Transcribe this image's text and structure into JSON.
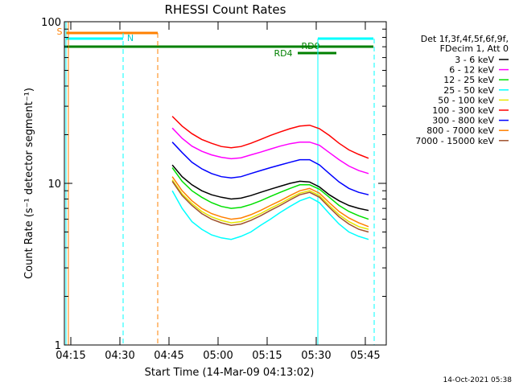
{
  "chart_data": {
    "type": "line",
    "title": "RHESSI Count Rates",
    "x_label": "Start Time (14-Mar-09 04:13:02)",
    "y_label": "Count Rate (s⁻¹ detector segment⁻¹)",
    "timestamp": "14-Oct-2021 05:38",
    "legend_title": [
      "Det 1f,3f,4f,5f,6f,9f,",
      "FDecim 1, Att 0"
    ],
    "annotations": [
      "S",
      "N",
      "RD0",
      "RD4"
    ],
    "log_y": true,
    "xlim": [
      "04:13:02",
      "05:51:24"
    ],
    "xticks": [
      "04:15",
      "04:30",
      "04:45",
      "05:00",
      "05:15",
      "05:30",
      "05:45"
    ],
    "ylim": [
      1,
      100
    ],
    "yticks": [
      1,
      10,
      100
    ],
    "x": [
      "04:46",
      "04:49",
      "04:52",
      "04:55",
      "04:58",
      "05:01",
      "05:04",
      "05:07",
      "05:10",
      "05:13",
      "05:16",
      "05:19",
      "05:22",
      "05:25",
      "05:28",
      "05:31",
      "05:34",
      "05:37",
      "05:40",
      "05:43",
      "05:46"
    ],
    "series": [
      {
        "name": "50 - 100 keV",
        "color": "#e6e600",
        "values": [
          10.5,
          8.6,
          7.5,
          6.7,
          6.2,
          5.9,
          5.7,
          5.8,
          6.1,
          6.5,
          7,
          7.5,
          8.1,
          8.7,
          9,
          8.4,
          7.3,
          6.4,
          5.8,
          5.4,
          5.2
        ]
      },
      {
        "name": "7000 - 15000 keV",
        "color": "#a0522d",
        "values": [
          10.3,
          8.4,
          7.3,
          6.5,
          6,
          5.7,
          5.5,
          5.6,
          5.9,
          6.3,
          6.8,
          7.3,
          7.9,
          8.5,
          8.8,
          8.2,
          7.1,
          6.2,
          5.6,
          5.2,
          5
        ]
      },
      {
        "name": "3 - 6 keV",
        "color": "#000000",
        "values": [
          13,
          11,
          9.8,
          9,
          8.5,
          8.2,
          8,
          8.1,
          8.4,
          8.8,
          9.2,
          9.6,
          10,
          10.3,
          10.2,
          9.5,
          8.5,
          7.8,
          7.3,
          7,
          6.8
        ]
      },
      {
        "name": "6 - 12 keV",
        "color": "#ff00ff",
        "values": [
          22,
          19,
          17,
          15.8,
          15,
          14.5,
          14.2,
          14.4,
          15,
          15.6,
          16.3,
          17,
          17.6,
          18,
          18,
          17.2,
          15.5,
          14,
          12.8,
          12,
          11.5
        ]
      },
      {
        "name": "12 - 25 keV",
        "color": "#00e000",
        "values": [
          12.5,
          10.3,
          9,
          8.2,
          7.6,
          7.2,
          7,
          7.1,
          7.4,
          7.8,
          8.3,
          8.8,
          9.3,
          9.8,
          9.8,
          9.2,
          8.2,
          7.3,
          6.7,
          6.3,
          6
        ]
      },
      {
        "name": "25 - 50 keV",
        "color": "#00ffff",
        "values": [
          9,
          7,
          5.8,
          5.2,
          4.8,
          4.6,
          4.5,
          4.7,
          5,
          5.5,
          6,
          6.6,
          7.2,
          7.8,
          8.2,
          7.6,
          6.5,
          5.6,
          5,
          4.7,
          4.5
        ]
      },
      {
        "name": "100 - 300 keV",
        "color": "#ff0000",
        "values": [
          26,
          22.6,
          20.3,
          18.7,
          17.7,
          16.9,
          16.6,
          16.9,
          17.7,
          18.7,
          19.8,
          20.8,
          21.8,
          22.6,
          22.9,
          21.8,
          19.8,
          17.7,
          16.1,
          15.1,
          14.3
        ]
      },
      {
        "name": "300 - 800 keV",
        "color": "#0000ff",
        "values": [
          18,
          15.5,
          13.5,
          12.3,
          11.5,
          11,
          10.8,
          11,
          11.5,
          12,
          12.5,
          13,
          13.5,
          14,
          14,
          13,
          11.5,
          10.2,
          9.3,
          8.8,
          8.5
        ]
      },
      {
        "name": "800 - 7000 keV",
        "color": "#ff8000",
        "values": [
          11,
          9,
          7.8,
          7,
          6.5,
          6.2,
          6,
          6.1,
          6.4,
          6.8,
          7.3,
          7.8,
          8.4,
          9,
          9.3,
          8.7,
          7.6,
          6.7,
          6.1,
          5.7,
          5.4
        ]
      }
    ],
    "legend_order": [
      2,
      3,
      4,
      5,
      0,
      6,
      7,
      8,
      1
    ]
  }
}
